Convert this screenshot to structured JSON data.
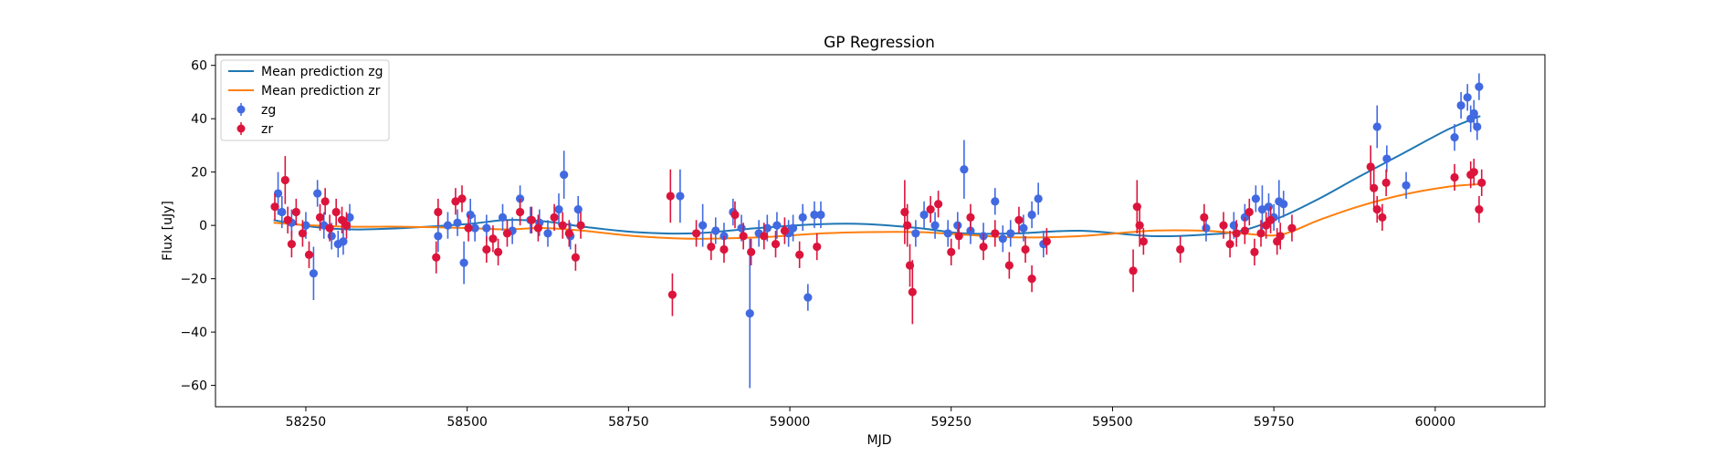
{
  "chart_data": {
    "type": "scatter",
    "title": "GP Regression",
    "xlabel": "MJD",
    "ylabel": "Flux [uJy]",
    "xlim": [
      58110,
      60170
    ],
    "ylim": [
      -68,
      64
    ],
    "xticks": [
      58250,
      58500,
      58750,
      59000,
      59250,
      59500,
      59750,
      60000
    ],
    "yticks": [
      -60,
      -40,
      -20,
      0,
      20,
      40,
      60
    ],
    "grid": false,
    "legend_position": "top-left",
    "legend_entries": [
      "Mean prediction zg",
      "Mean prediction zr",
      "zg",
      "zr"
    ],
    "colors": {
      "zg_line": "#1f77b4",
      "zr_line": "#ff7f0e",
      "zg_points": "#4169e1",
      "zr_points": "#dc143c"
    },
    "mean_prediction": [
      {
        "name": "Mean prediction zg",
        "x": [
          58200,
          58260,
          58320,
          58400,
          58500,
          58560,
          58620,
          58680,
          58760,
          58850,
          58950,
          59050,
          59120,
          59200,
          59270,
          59350,
          59450,
          59560,
          59640,
          59700,
          59760,
          59820,
          59880,
          59950,
          60020,
          60070
        ],
        "y": [
          2,
          -0.5,
          -1.5,
          -1,
          0.5,
          2,
          1.5,
          -0.5,
          -2.5,
          -3,
          -1,
          0.5,
          0.5,
          -1,
          -3,
          -3,
          -2,
          -4,
          -3.5,
          -2,
          3,
          10,
          18,
          27,
          36,
          41
        ]
      },
      {
        "name": "Mean prediction zr",
        "x": [
          58200,
          58260,
          58320,
          58400,
          58500,
          58560,
          58620,
          58680,
          58760,
          58850,
          58950,
          59050,
          59120,
          59200,
          59270,
          59350,
          59450,
          59560,
          59640,
          59700,
          59760,
          59820,
          59880,
          59950,
          60020,
          60070
        ],
        "y": [
          1,
          0,
          -0.5,
          -0.5,
          -1,
          -1.5,
          -1,
          -2,
          -4,
          -5,
          -4.5,
          -3,
          -2.5,
          -2.5,
          -3.5,
          -4.5,
          -4,
          -2,
          -2,
          -3,
          -3.5,
          2,
          7,
          11.5,
          14.5,
          15.5
        ]
      }
    ],
    "series": [
      {
        "name": "zg",
        "x": [
          58207,
          58213,
          58228,
          58250,
          58262,
          58268,
          58278,
          58290,
          58300,
          58308,
          58318,
          58455,
          58470,
          58485,
          58495,
          58505,
          58512,
          58530,
          58555,
          58570,
          58582,
          58598,
          58612,
          58625,
          58642,
          58650,
          58660,
          58672,
          58830,
          58865,
          58885,
          58898,
          58912,
          58925,
          58938,
          58952,
          58965,
          58980,
          58998,
          59005,
          59020,
          59028,
          59038,
          59048,
          59195,
          59208,
          59225,
          59245,
          59260,
          59270,
          59280,
          59300,
          59318,
          59330,
          59342,
          59362,
          59375,
          59385,
          59393,
          59645,
          59688,
          59705,
          59722,
          59732,
          59742,
          59750,
          59758,
          59765,
          59910,
          59925,
          59955,
          60030,
          60040,
          60050,
          60055,
          60060,
          60065,
          60068
        ],
        "y": [
          12,
          5,
          1,
          0,
          -18,
          12,
          0,
          -4,
          -7,
          -6,
          3,
          -4,
          0,
          1,
          -14,
          4,
          -1,
          -1,
          3,
          -2,
          10,
          2,
          1,
          -3,
          6,
          19,
          -4,
          6,
          11,
          0,
          -2,
          -4,
          5,
          -1,
          -33,
          -3,
          -1,
          0,
          -3,
          -1,
          3,
          -27,
          4,
          4,
          -3,
          4,
          0,
          -3,
          0,
          21,
          -2,
          -4,
          9,
          -5,
          -3,
          -1,
          4,
          10,
          -7,
          -1,
          0,
          3,
          10,
          6,
          7,
          3,
          9,
          8,
          37,
          25,
          15,
          33,
          45,
          48,
          40,
          42,
          37,
          52
        ],
        "error": [
          8,
          6,
          5,
          5,
          10,
          5,
          5,
          5,
          5,
          5,
          5,
          6,
          5,
          5,
          8,
          6,
          5,
          5,
          5,
          5,
          5,
          5,
          5,
          5,
          6,
          9,
          5,
          5,
          10,
          8,
          5,
          5,
          5,
          5,
          28,
          5,
          5,
          5,
          5,
          5,
          5,
          5,
          5,
          5,
          5,
          5,
          5,
          5,
          5,
          11,
          5,
          5,
          5,
          5,
          5,
          5,
          5,
          6,
          5,
          5,
          5,
          5,
          5,
          9,
          5,
          5,
          8,
          5,
          8,
          5,
          5,
          5,
          5,
          5,
          5,
          5,
          5,
          5
        ]
      },
      {
        "name": "zr",
        "x": [
          58202,
          58218,
          58222,
          58228,
          58235,
          58245,
          58255,
          58272,
          58280,
          58287,
          58297,
          58306,
          58313,
          58452,
          58455,
          58482,
          58492,
          58502,
          58530,
          58540,
          58548,
          58562,
          58582,
          58600,
          58610,
          58635,
          58648,
          58658,
          58668,
          58676,
          58815,
          58818,
          58855,
          58878,
          58898,
          58915,
          58928,
          58940,
          58960,
          58978,
          58992,
          59015,
          59042,
          59178,
          59182,
          59186,
          59190,
          59218,
          59230,
          59250,
          59262,
          59280,
          59300,
          59318,
          59340,
          59355,
          59365,
          59375,
          59398,
          59532,
          59538,
          59542,
          59548,
          59605,
          59642,
          59672,
          59682,
          59692,
          59705,
          59712,
          59720,
          59730,
          59738,
          59745,
          59755,
          59760,
          59778,
          59900,
          59905,
          59910,
          59918,
          59924,
          60030,
          60055,
          60060,
          60068,
          60072
        ],
        "y": [
          7,
          17,
          2,
          -7,
          5,
          -3,
          -11,
          3,
          9,
          -1,
          5,
          2,
          0,
          -12,
          5,
          9,
          10,
          -1,
          -9,
          -5,
          -10,
          -3,
          5,
          2,
          -1,
          3,
          0,
          -3,
          -12,
          0,
          11,
          -26,
          -3,
          -8,
          -9,
          4,
          -4,
          -10,
          -4,
          -7,
          -2,
          -11,
          -8,
          5,
          0,
          -15,
          -25,
          6,
          8,
          -10,
          -4,
          3,
          -8,
          -3,
          -15,
          2,
          -9,
          -20,
          -6,
          -17,
          7,
          0,
          -6,
          -9,
          3,
          0,
          -7,
          -3,
          -2,
          5,
          -10,
          -3,
          0,
          2,
          -6,
          -4,
          -1,
          22,
          14,
          6,
          3,
          16,
          18,
          19,
          20,
          6,
          16
        ],
        "error": [
          5,
          9,
          5,
          5,
          5,
          5,
          5,
          5,
          5,
          5,
          5,
          5,
          5,
          6,
          5,
          5,
          5,
          5,
          5,
          5,
          5,
          5,
          5,
          5,
          5,
          5,
          5,
          5,
          5,
          5,
          10,
          8,
          5,
          5,
          5,
          5,
          5,
          5,
          5,
          5,
          5,
          5,
          5,
          12,
          8,
          8,
          12,
          5,
          5,
          5,
          5,
          5,
          5,
          5,
          5,
          5,
          5,
          5,
          5,
          8,
          10,
          8,
          5,
          5,
          5,
          5,
          5,
          5,
          5,
          5,
          5,
          5,
          5,
          5,
          5,
          5,
          5,
          8,
          8,
          5,
          5,
          5,
          5,
          5,
          5,
          5,
          5
        ]
      }
    ]
  }
}
